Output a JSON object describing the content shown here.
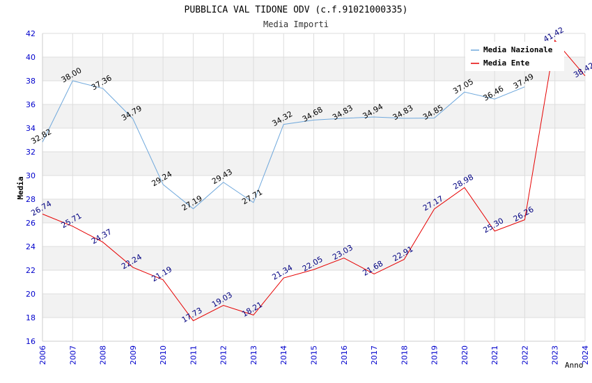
{
  "chart_data": {
    "type": "line",
    "title": "PUBBLICA VAL TIDONE ODV (c.f.91021000335)",
    "subtitle": "Media Importi",
    "xlabel": "Anno",
    "ylabel": "Media",
    "ylim": [
      16,
      42
    ],
    "y_ticks": [
      "16",
      "18",
      "20",
      "22",
      "24",
      "26",
      "28",
      "30",
      "32",
      "34",
      "36",
      "38",
      "40",
      "42"
    ],
    "x": [
      "2006",
      "2007",
      "2008",
      "2009",
      "2010",
      "2011",
      "2012",
      "2013",
      "2014",
      "2015",
      "2016",
      "2017",
      "2018",
      "2019",
      "2020",
      "2021",
      "2022",
      "2023",
      "2024"
    ],
    "legend_position": "top-right",
    "grid": true,
    "colors": {
      "axis_tick_text": "#0000cc",
      "band": "#f2f2f2",
      "grid": "#dddddd"
    },
    "series": [
      {
        "name": "Media Nazionale",
        "color": "#6fa8dc",
        "label_color": "#000000",
        "values": [
          32.82,
          38.0,
          37.36,
          34.79,
          29.24,
          27.19,
          29.43,
          27.71,
          34.32,
          34.68,
          34.83,
          34.94,
          34.83,
          34.85,
          37.05,
          36.46,
          37.49,
          null,
          null
        ],
        "labels": [
          "32.82",
          "38.00",
          "37.36",
          "34.79",
          "29.24",
          "27.19",
          "29.43",
          "27.71",
          "34.32",
          "34.68",
          "34.83",
          "34.94",
          "34.83",
          "34.85",
          "37.05",
          "36.46",
          "37.49",
          null,
          null
        ]
      },
      {
        "name": "Media Ente",
        "color": "#e60000",
        "label_color": "#000080",
        "values": [
          26.74,
          25.71,
          24.37,
          22.24,
          21.19,
          17.73,
          19.03,
          18.21,
          21.34,
          22.05,
          23.03,
          21.68,
          22.91,
          27.17,
          28.98,
          25.3,
          26.26,
          41.42,
          38.42
        ],
        "labels": [
          "26.74",
          "25.71",
          "24.37",
          "22.24",
          "21.19",
          "17.73",
          "19.03",
          "18.21",
          "21.34",
          "22.05",
          "23.03",
          "21.68",
          "22.91",
          "27.17",
          "28.98",
          "25.30",
          "26.26",
          "41.42",
          "38.42"
        ]
      }
    ]
  }
}
